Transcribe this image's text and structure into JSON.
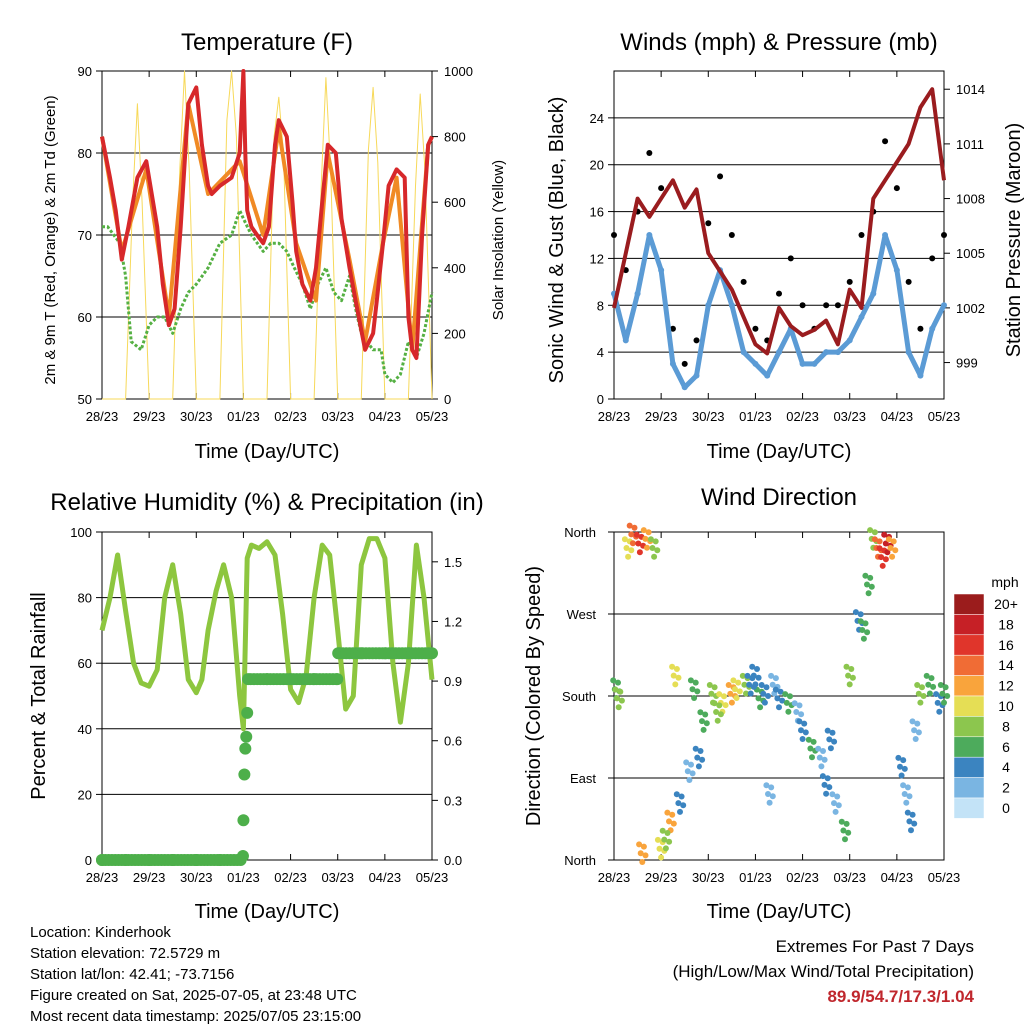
{
  "chart_data": [
    {
      "type": "line",
      "title": "Temperature (F)",
      "xlabel": "Time (Day/UTC)",
      "ylabel": "2m & 9m T (Red, Orange) & 2m Td (Green)",
      "ylabel_right": "Solar Insolation (Yellow)",
      "x_ticks": [
        "28/23",
        "29/23",
        "30/23",
        "01/23",
        "02/23",
        "03/23",
        "04/23",
        "05/23"
      ],
      "ylim": [
        50,
        90
      ],
      "y_ticks": [
        50,
        60,
        70,
        80,
        90
      ],
      "ylim_right": [
        0,
        1000
      ],
      "y_ticks_right": [
        0,
        200,
        400,
        600,
        800,
        1000
      ],
      "grid": true,
      "series": [
        {
          "name": "2m T",
          "color": "#d7282a",
          "x": [
            0,
            0.17,
            0.29,
            0.42,
            0.56,
            0.75,
            0.94,
            1.17,
            1.29,
            1.42,
            1.54,
            1.67,
            1.83,
            2.0,
            2.12,
            2.25,
            2.33,
            2.5,
            2.75,
            2.92,
            3.0,
            3.04,
            3.08,
            3.17,
            3.29,
            3.42,
            3.54,
            3.67,
            3.75,
            3.92,
            4.04,
            4.12,
            4.25,
            4.42,
            4.54,
            4.67,
            4.79,
            4.96,
            5.08,
            5.25,
            5.38,
            5.58,
            5.75,
            5.83,
            5.96,
            6.08,
            6.25,
            6.42,
            6.5,
            6.58,
            6.67,
            6.79,
            6.92,
            7.0
          ],
          "values": [
            82,
            77,
            73,
            67,
            71,
            77,
            79,
            71,
            64,
            59,
            61,
            71,
            86,
            88,
            81,
            76,
            75,
            76,
            77,
            80,
            90,
            80,
            73,
            71,
            70,
            69,
            71,
            81,
            84,
            82,
            74,
            68,
            64,
            62,
            66,
            74,
            81,
            80,
            72,
            66,
            62,
            56,
            58,
            62,
            69,
            76,
            78,
            77,
            60,
            56,
            55,
            70,
            81,
            82
          ]
        },
        {
          "name": "9m T",
          "color": "#f08a24",
          "x": [
            0,
            0.42,
            0.94,
            1.42,
            1.83,
            2.25,
            2.92,
            3.42,
            3.75,
            4.12,
            4.54,
            4.79,
            5.25,
            5.58,
            5.96,
            6.25,
            6.58,
            6.92,
            7.0
          ],
          "values": [
            82,
            68,
            78,
            60,
            86,
            75,
            79,
            70,
            83,
            69,
            62,
            80,
            67,
            57,
            69,
            77,
            56,
            81,
            82
          ]
        },
        {
          "name": "2m Td",
          "color": "#55b043",
          "x": [
            0,
            0.12,
            0.25,
            0.38,
            0.5,
            0.62,
            0.83,
            1.0,
            1.17,
            1.33,
            1.5,
            1.67,
            1.83,
            2.0,
            2.25,
            2.5,
            2.75,
            2.92,
            3.0,
            3.17,
            3.42,
            3.58,
            3.75,
            3.92,
            4.08,
            4.25,
            4.42,
            4.58,
            4.75,
            4.92,
            5.08,
            5.25,
            5.38,
            5.5,
            5.62,
            5.75,
            5.92,
            6.0,
            6.17,
            6.33,
            6.5,
            6.67,
            6.83,
            7.0
          ],
          "values": [
            71,
            71,
            70,
            69,
            65,
            57,
            56,
            59,
            60,
            60,
            58,
            61,
            63,
            64,
            66,
            69,
            70,
            73,
            72,
            70,
            68,
            69,
            69,
            68,
            66,
            64,
            61,
            64,
            66,
            63,
            62,
            65,
            61,
            58,
            57,
            56,
            56,
            53,
            52,
            53,
            57,
            55,
            58,
            63
          ]
        },
        {
          "name": "Solar Insolation",
          "color": "#f7d95a",
          "axis": "right",
          "x": [
            0,
            0.5,
            0.65,
            0.75,
            0.85,
            1.0,
            1.5,
            1.65,
            1.75,
            1.85,
            2.0,
            2.5,
            2.65,
            2.75,
            2.85,
            3.0,
            3.5,
            3.65,
            3.75,
            3.85,
            4.0,
            4.5,
            4.65,
            4.75,
            4.85,
            5.0,
            5.5,
            5.65,
            5.75,
            5.85,
            6.0,
            6.5,
            6.65,
            6.75,
            6.85,
            7.0
          ],
          "values": [
            0,
            0,
            600,
            900,
            600,
            0,
            0,
            700,
            1000,
            700,
            0,
            0,
            850,
            1000,
            800,
            0,
            0,
            800,
            920,
            750,
            0,
            0,
            650,
            980,
            700,
            0,
            0,
            760,
            950,
            720,
            0,
            0,
            650,
            930,
            700,
            0
          ]
        }
      ]
    },
    {
      "type": "scatter",
      "title": "Winds (mph) & Pressure (mb)",
      "xlabel": "Time (Day/UTC)",
      "ylabel": "Sonic Wind & Gust (Blue, Black)",
      "ylabel_right": "Station Pressure (Maroon)",
      "x_ticks": [
        "28/23",
        "29/23",
        "30/23",
        "01/23",
        "02/23",
        "03/23",
        "04/23",
        "05/23"
      ],
      "ylim": [
        0,
        28
      ],
      "y_ticks": [
        0,
        4,
        8,
        12,
        16,
        20,
        24
      ],
      "ylim_right": [
        997,
        1015
      ],
      "y_ticks_right": [
        999,
        1002,
        1005,
        1008,
        1011,
        1014
      ],
      "grid": true,
      "series": [
        {
          "name": "Gust",
          "color": "#000000",
          "x": [
            0,
            0.25,
            0.5,
            0.75,
            1.0,
            1.25,
            1.5,
            1.75,
            2.0,
            2.25,
            2.5,
            2.75,
            3.0,
            3.25,
            3.5,
            3.75,
            4.0,
            4.25,
            4.5,
            4.75,
            5.0,
            5.25,
            5.5,
            5.75,
            6.0,
            6.25,
            6.5,
            6.75,
            7.0
          ],
          "values": [
            14,
            11,
            16,
            21,
            18,
            6,
            3,
            5,
            15,
            19,
            14,
            10,
            6,
            5,
            9,
            12,
            8,
            6,
            8,
            8,
            10,
            14,
            16,
            22,
            18,
            10,
            6,
            12,
            14
          ]
        },
        {
          "name": "Wind",
          "color": "#5b9bd5",
          "x": [
            0,
            0.25,
            0.5,
            0.75,
            1.0,
            1.25,
            1.5,
            1.75,
            2.0,
            2.25,
            2.5,
            2.75,
            3.0,
            3.25,
            3.5,
            3.75,
            4.0,
            4.25,
            4.5,
            4.75,
            5.0,
            5.25,
            5.5,
            5.75,
            6.0,
            6.25,
            6.5,
            6.75,
            7.0
          ],
          "values": [
            9,
            5,
            9,
            14,
            11,
            3,
            1,
            2,
            8,
            11,
            8,
            4,
            3,
            2,
            4,
            6,
            3,
            3,
            4,
            4,
            5,
            7,
            9,
            14,
            11,
            4,
            2,
            6,
            8
          ]
        },
        {
          "name": "Station Pressure",
          "color": "#9a1c1f",
          "axis": "right",
          "x": [
            0,
            0.25,
            0.5,
            0.75,
            1.0,
            1.25,
            1.5,
            1.75,
            2.0,
            2.25,
            2.5,
            2.75,
            3.0,
            3.25,
            3.5,
            3.75,
            4.0,
            4.25,
            4.5,
            4.75,
            5.0,
            5.25,
            5.5,
            5.75,
            6.0,
            6.25,
            6.5,
            6.75,
            7.0
          ],
          "values": [
            1002,
            1005,
            1008,
            1007,
            1008,
            1009,
            1007.5,
            1008.5,
            1005,
            1004,
            1003,
            1001.5,
            1000,
            999.5,
            1002,
            1001,
            1000.5,
            1000.8,
            1001.3,
            1000,
            1003,
            1002,
            1008,
            1009,
            1010,
            1011,
            1013,
            1014,
            1009
          ]
        }
      ]
    },
    {
      "type": "line",
      "title": "Relative Humidity (%) & Precipitation (in)",
      "xlabel": "Time (Day/UTC)",
      "ylabel": "Percent & Total Rainfall",
      "x_ticks": [
        "28/23",
        "29/23",
        "30/23",
        "01/23",
        "02/23",
        "03/23",
        "04/23",
        "05/23"
      ],
      "ylim": [
        0,
        100
      ],
      "y_ticks": [
        0,
        20,
        40,
        60,
        80,
        100
      ],
      "ylim_right": [
        0,
        1.65
      ],
      "y_ticks_right": [
        "0.0",
        "0.3",
        "0.6",
        "0.9",
        "1.2",
        "1.5"
      ],
      "grid": true,
      "series": [
        {
          "name": "Relative Humidity",
          "color": "#8dc63f",
          "x": [
            0,
            0.17,
            0.33,
            0.5,
            0.67,
            0.83,
            1.0,
            1.17,
            1.33,
            1.5,
            1.67,
            1.83,
            2.0,
            2.12,
            2.25,
            2.42,
            2.58,
            2.75,
            2.92,
            3.0,
            3.08,
            3.17,
            3.33,
            3.5,
            3.67,
            3.83,
            4.0,
            4.17,
            4.33,
            4.5,
            4.67,
            4.83,
            5.0,
            5.17,
            5.33,
            5.5,
            5.67,
            5.83,
            6.0,
            6.17,
            6.33,
            6.5,
            6.67,
            6.83,
            7.0
          ],
          "values": [
            70,
            80,
            93,
            76,
            60,
            54,
            53,
            58,
            80,
            90,
            75,
            55,
            51,
            55,
            70,
            82,
            90,
            80,
            50,
            40,
            92,
            96,
            95,
            97,
            93,
            75,
            52,
            48,
            56,
            80,
            96,
            93,
            70,
            46,
            50,
            90,
            98,
            98,
            92,
            60,
            42,
            60,
            96,
            80,
            55
          ]
        },
        {
          "name": "Total Precipitation",
          "color": "#4daf4a",
          "axis": "right",
          "x": [
            0,
            0.5,
            1.0,
            1.5,
            2.0,
            2.5,
            2.99,
            3.0,
            3.02,
            3.04,
            3.06,
            3.08,
            3.1,
            3.5,
            4.0,
            4.5,
            4.99,
            5.01,
            5.5,
            6.0,
            6.5,
            7.0
          ],
          "values": [
            0,
            0,
            0,
            0,
            0,
            0,
            0.02,
            0.2,
            0.43,
            0.56,
            0.62,
            0.74,
            0.91,
            0.91,
            0.91,
            0.91,
            0.91,
            1.04,
            1.04,
            1.04,
            1.04,
            1.04
          ]
        }
      ]
    },
    {
      "type": "scatter",
      "title": "Wind Direction",
      "xlabel": "Time (Day/UTC)",
      "ylabel": "Direction (Colored By Speed)",
      "x_ticks": [
        "28/23",
        "29/23",
        "30/23",
        "01/23",
        "02/23",
        "03/23",
        "04/23",
        "05/23"
      ],
      "y_ticks": [
        "North",
        "East",
        "South",
        "West",
        "North"
      ],
      "ylim": [
        0,
        360
      ],
      "grid": true,
      "legend": {
        "title": "mph",
        "labels": [
          "20+",
          "18",
          "16",
          "14",
          "12",
          "10",
          "8",
          "6",
          "4",
          "2",
          "0"
        ],
        "colors": [
          "#9b1c1c",
          "#c62026",
          "#e0352b",
          "#f06c35",
          "#f9a43c",
          "#e5de55",
          "#8cc64e",
          "#4dab5c",
          "#3b84c0",
          "#7ab5e2",
          "#c3e3f7"
        ],
        "placement": "right"
      },
      "points": {
        "x": [
          0.05,
          0.1,
          0.3,
          0.4,
          0.55,
          0.7,
          0.85,
          1.0,
          1.2,
          1.4,
          1.6,
          1.8,
          1.9,
          2.1,
          2.3,
          2.5,
          2.6,
          2.8,
          3.0,
          3.1,
          3.2,
          3.4,
          3.5,
          3.7,
          3.9,
          4.0,
          4.2,
          4.4,
          4.5,
          4.7,
          4.9,
          5.0,
          5.2,
          5.4,
          5.5,
          5.6,
          5.7,
          5.8,
          5.9,
          6.1,
          6.2,
          6.3,
          6.5,
          6.7,
          6.9,
          7.0,
          0.6,
          1.1,
          1.3,
          1.7,
          2.2,
          2.9,
          3.3,
          4.6,
          5.3,
          6.4
        ],
        "y": [
          185,
          175,
          340,
          355,
          345,
          350,
          340,
          10,
          40,
          60,
          95,
          110,
          150,
          180,
          170,
          180,
          185,
          190,
          200,
          175,
          180,
          190,
          175,
          170,
          160,
          140,
          120,
          110,
          80,
          60,
          30,
          200,
          260,
          300,
          350,
          340,
          330,
          345,
          340,
          100,
          70,
          40,
          180,
          190,
          170,
          180,
          5,
          20,
          200,
          185,
          160,
          190,
          70,
          130,
          250,
          140
        ],
        "speed": [
          6,
          8,
          10,
          14,
          16,
          12,
          8,
          10,
          12,
          4,
          2,
          4,
          6,
          8,
          10,
          12,
          10,
          8,
          4,
          6,
          4,
          2,
          4,
          6,
          2,
          4,
          6,
          2,
          4,
          2,
          6,
          8,
          4,
          6,
          8,
          14,
          16,
          18,
          12,
          4,
          2,
          4,
          8,
          6,
          4,
          6,
          12,
          8,
          10,
          6,
          8,
          4,
          2,
          4,
          6,
          2
        ]
      }
    }
  ],
  "info": {
    "location": "Location: Kinderhook",
    "elevation": "Station elevation: 72.5729 m",
    "latlon": "Station lat/lon: 42.41; -73.7156",
    "created": "Figure created on Sat, 2025-07-05, at 23:48 UTC",
    "recent": "Most recent data timestamp: 2025/07/05 23:15:00"
  },
  "extremes": {
    "title": "Extremes For Past 7 Days",
    "subtitle": "(High/Low/Max Wind/Total Precipitation)",
    "values": "89.9/54.7/17.3/1.04"
  }
}
